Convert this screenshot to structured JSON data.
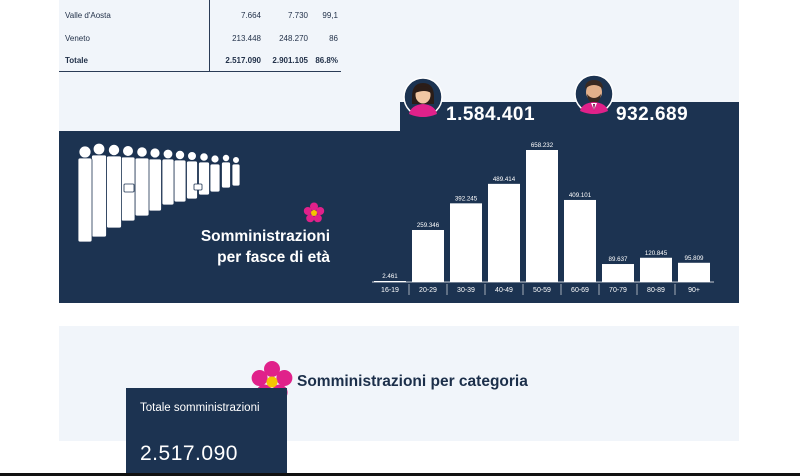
{
  "regions_table": {
    "rows": [
      {
        "name": "Valle d'Aosta",
        "col_a": "7.664",
        "col_b": "7.730",
        "col_c": "99,1",
        "is_total": false
      },
      {
        "name": "Veneto",
        "col_a": "213.448",
        "col_b": "248.270",
        "col_c": "86",
        "is_total": false
      },
      {
        "name": "Totale",
        "col_a": "2.517.090",
        "col_b": "2.901.105",
        "col_c": "86.8%",
        "is_total": true
      }
    ]
  },
  "gender_stats": {
    "female": {
      "value": "1.584.401",
      "icon": "woman-avatar-icon",
      "color": "#e0218a"
    },
    "male": {
      "value": "932.689",
      "icon": "man-avatar-icon",
      "color": "#e0218a"
    }
  },
  "age_section": {
    "title_line1": "Somministrazioni",
    "title_line2": "per fasce di età",
    "icon": "flower-icon"
  },
  "chart_data": {
    "type": "bar",
    "categories": [
      "16-19",
      "20-29",
      "30-39",
      "40-49",
      "50-59",
      "60-69",
      "70-79",
      "80-89",
      "90+"
    ],
    "values": [
      2461,
      259346,
      392245,
      489414,
      658232,
      409101,
      89637,
      120845,
      95809
    ],
    "value_labels": [
      "2.461",
      "259.346",
      "392.245",
      "489.414",
      "658.232",
      "409.101",
      "89.637",
      "120.845",
      "95.809"
    ],
    "title": "",
    "xlabel": "",
    "ylabel": "",
    "ylim": [
      0,
      658232
    ],
    "grid": false,
    "bar_color": "#ffffff",
    "label_color": "#ffffff"
  },
  "category_section": {
    "title": "Somministrazioni per categoria",
    "icon": "flower-icon",
    "total_label": "Totale somministrazioni",
    "total_value": "2.517.090"
  },
  "colors": {
    "navy": "#1c3351",
    "light_panel": "#f1f5fa",
    "accent_pink": "#e0218a"
  }
}
